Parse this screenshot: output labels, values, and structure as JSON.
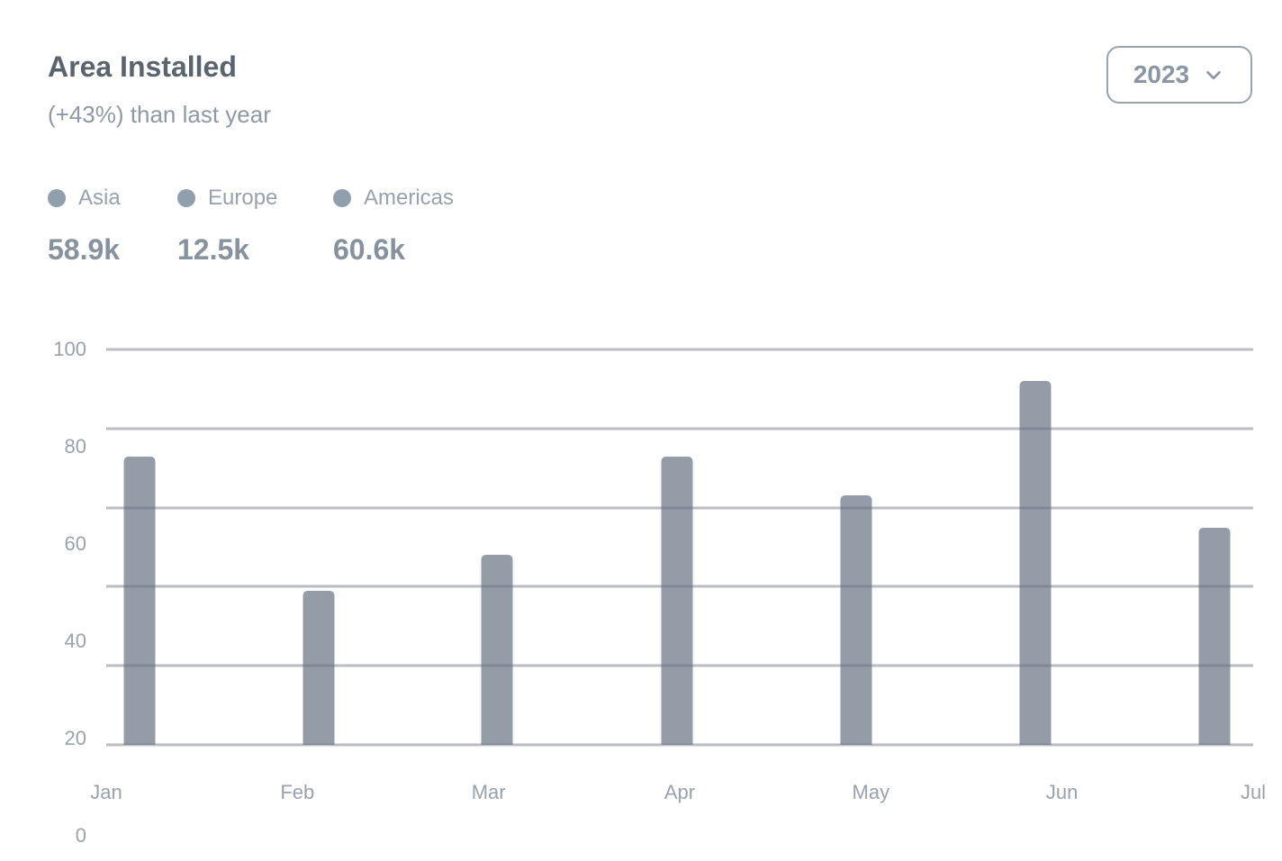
{
  "header": {
    "title": "Area Installed",
    "subtitle": "(+43%) than last year",
    "year_selector": {
      "value": "2023",
      "icon": "chevron-down-icon"
    }
  },
  "legend": {
    "items": [
      {
        "label": "Asia",
        "value": "58.9k",
        "marker_color": "#919EAB"
      },
      {
        "label": "Europe",
        "value": "12.5k",
        "marker_color": "#919EAB"
      },
      {
        "label": "Americas",
        "value": "60.6k",
        "marker_color": "#919EAB"
      }
    ]
  },
  "chart_data": {
    "type": "bar",
    "title": "Area Installed",
    "categories": [
      "Jan",
      "Feb",
      "Mar",
      "Apr",
      "May",
      "Jun",
      "Jul"
    ],
    "values": [
      73,
      39,
      48,
      73,
      63,
      92,
      55
    ],
    "xlabel": "",
    "ylabel": "",
    "ylim": [
      0,
      100
    ],
    "yticks": [
      0,
      20,
      40,
      60,
      80,
      100
    ],
    "grid": true,
    "legend_position": "top-left",
    "bar_color": "#949CA8",
    "bar_centers_pct": [
      2.9,
      18.5,
      34.1,
      49.8,
      65.4,
      81.0,
      96.6
    ]
  },
  "colors": {
    "background": "#FFFFFF",
    "title": "#5A646F",
    "subtitle": "#8E99A5",
    "legend_label": "#98A2AC",
    "legend_value": "#87929F",
    "axis_label": "#98A2AC",
    "gridline": "#A8AEB6",
    "bar": "#949CA8",
    "button_border": "#99A3AD",
    "button_text": "#8A96A4"
  }
}
